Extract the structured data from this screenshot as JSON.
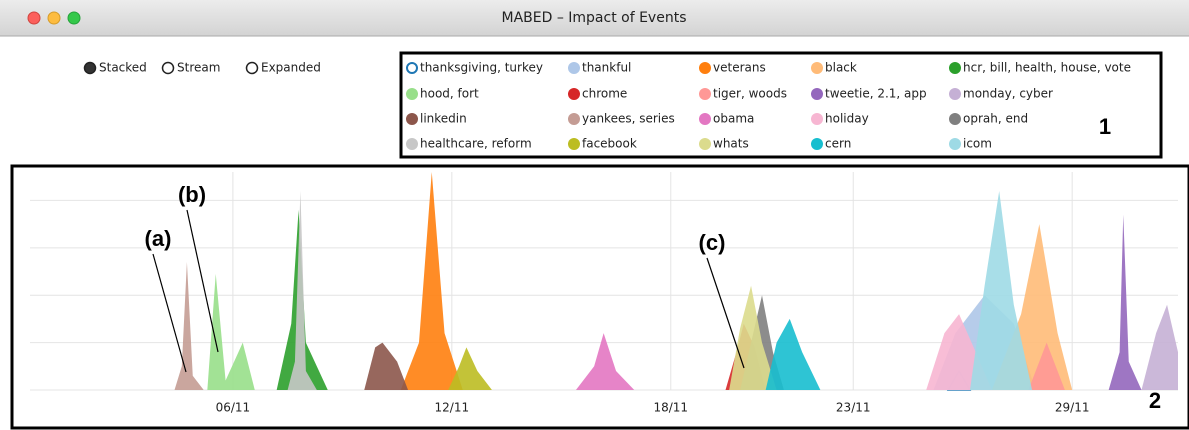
{
  "window": {
    "title": "MABED – Impact of Events"
  },
  "modes": [
    "Stacked",
    "Stream",
    "Expanded"
  ],
  "selected_mode": 0,
  "annotations": [
    "(a)",
    "(b)",
    "(c)",
    "1",
    "2"
  ],
  "chart_data": {
    "type": "area",
    "xlim": [
      0.44,
      31.9
    ],
    "ylim": [
      0,
      4.6
    ],
    "xticks": [
      {
        "value": 6,
        "label": "06/11"
      },
      {
        "value": 12,
        "label": "12/11"
      },
      {
        "value": 18,
        "label": "18/11"
      },
      {
        "value": 23,
        "label": "23/11"
      },
      {
        "value": 29,
        "label": "29/11"
      }
    ],
    "yticks": [
      0,
      1,
      2,
      3,
      4
    ],
    "grid": true,
    "series": [
      {
        "name": "thanksgiving, turkey",
        "color": "#1f77b4",
        "style": "outline",
        "x": [
          25.6,
          25.9,
          26.2
        ],
        "values": [
          0,
          0.4,
          0
        ]
      },
      {
        "name": "thankful",
        "color": "#aec7e8",
        "x": [
          25.2,
          25.8,
          26.6,
          27.4,
          28.0
        ],
        "values": [
          0,
          1.2,
          2.0,
          1.4,
          0
        ]
      },
      {
        "name": "veterans",
        "color": "#ff7f0e",
        "x": [
          10.6,
          11.1,
          11.45,
          11.8,
          12.3
        ],
        "values": [
          0,
          1.0,
          4.6,
          1.2,
          0
        ]
      },
      {
        "name": "black",
        "color": "#ffbb78",
        "x": [
          26.8,
          27.6,
          28.1,
          28.6,
          29.0
        ],
        "values": [
          0,
          1.6,
          3.5,
          1.2,
          0
        ]
      },
      {
        "name": "hcr, bill, health, house, vote",
        "color": "#2ca02c",
        "x": [
          7.2,
          7.6,
          7.8,
          8.0,
          8.6
        ],
        "values": [
          0,
          1.4,
          3.8,
          1.0,
          0
        ]
      },
      {
        "name": "hood, fort",
        "color": "#98df8a",
        "x": [
          5.3,
          5.53,
          5.8,
          6.27,
          6.6
        ],
        "values": [
          0,
          2.45,
          0.2,
          1.0,
          0
        ]
      },
      {
        "name": "chrome",
        "color": "#d62728",
        "x": [
          19.5,
          19.8,
          20.0,
          20.3,
          20.6
        ],
        "values": [
          0,
          0.8,
          1.4,
          0.9,
          0
        ]
      },
      {
        "name": "tiger, woods",
        "color": "#ff9896",
        "x": [
          27.8,
          28.3,
          28.8
        ],
        "values": [
          0,
          1.0,
          0
        ]
      },
      {
        "name": "tweetie, 2.1, app",
        "color": "#9467bd",
        "x": [
          30.0,
          30.3,
          30.4,
          30.55,
          30.9
        ],
        "values": [
          0,
          0.8,
          3.7,
          0.6,
          0
        ]
      },
      {
        "name": "monday, cyber",
        "color": "#c5b0d5",
        "x": [
          30.9,
          31.3,
          31.6,
          31.9
        ],
        "values": [
          0,
          1.2,
          1.8,
          0.8
        ]
      },
      {
        "name": "linkedin",
        "color": "#8c564b",
        "x": [
          9.6,
          9.9,
          10.1,
          10.5,
          10.8
        ],
        "values": [
          0,
          0.9,
          1.0,
          0.6,
          0
        ]
      },
      {
        "name": "yankees, series",
        "color": "#c49c94",
        "x": [
          4.4,
          4.6,
          4.74,
          4.9,
          5.2
        ],
        "values": [
          0,
          0.5,
          2.7,
          0.3,
          0
        ]
      },
      {
        "name": "obama",
        "color": "#e377c2",
        "x": [
          15.4,
          15.9,
          16.16,
          16.5,
          17.0
        ],
        "values": [
          0,
          0.5,
          1.2,
          0.4,
          0
        ]
      },
      {
        "name": "holiday",
        "color": "#f7b6d2",
        "x": [
          25.0,
          25.5,
          25.9,
          26.3,
          26.8
        ],
        "values": [
          0,
          1.2,
          1.6,
          0.9,
          0
        ]
      },
      {
        "name": "oprah, end",
        "color": "#7f7f7f",
        "x": [
          19.9,
          20.2,
          20.5,
          20.8,
          21.1
        ],
        "values": [
          0,
          1.0,
          2.0,
          0.8,
          0
        ]
      },
      {
        "name": "healthcare, reform",
        "color": "#c7c7c7",
        "x": [
          7.5,
          7.7,
          7.85,
          8.0,
          8.3
        ],
        "values": [
          0,
          0.6,
          4.2,
          0.4,
          0
        ]
      },
      {
        "name": "facebook",
        "color": "#bcbd22",
        "x": [
          11.9,
          12.2,
          12.4,
          12.7,
          13.1
        ],
        "values": [
          0,
          0.5,
          0.9,
          0.4,
          0
        ]
      },
      {
        "name": "whats",
        "color": "#dbdb8d",
        "x": [
          19.6,
          19.9,
          20.2,
          20.5,
          20.9
        ],
        "values": [
          0,
          1.3,
          2.2,
          1.0,
          0
        ]
      },
      {
        "name": "cern",
        "color": "#17becf",
        "x": [
          20.6,
          20.9,
          21.26,
          21.6,
          22.1
        ],
        "values": [
          0,
          1.0,
          1.5,
          0.8,
          0
        ]
      },
      {
        "name": "icom",
        "color": "#9edae5",
        "x": [
          26.2,
          26.6,
          27.0,
          27.4,
          27.9
        ],
        "values": [
          0,
          2.2,
          4.2,
          1.8,
          0
        ]
      }
    ]
  }
}
